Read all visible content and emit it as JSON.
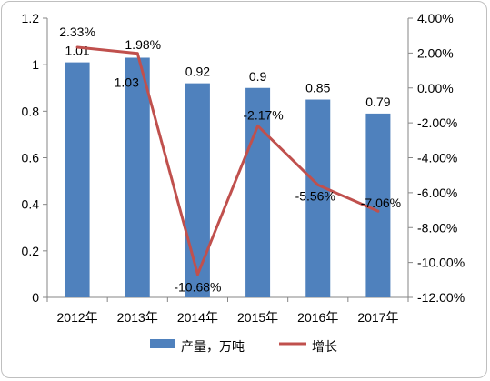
{
  "chart_data": {
    "type": "bar+line",
    "categories": [
      "2012年",
      "2013年",
      "2014年",
      "2015年",
      "2016年",
      "2017年"
    ],
    "series": [
      {
        "name": "产量，万吨",
        "type": "bar",
        "axis": "left",
        "color": "#4f81bd",
        "values": [
          1.01,
          1.03,
          0.92,
          0.9,
          0.85,
          0.79
        ],
        "labels": [
          "1.01",
          "1.03",
          "0.92",
          "0.9",
          "0.85",
          "0.79"
        ]
      },
      {
        "name": "增长",
        "type": "line",
        "axis": "right",
        "color": "#c0504d",
        "values": [
          2.33,
          1.98,
          -10.68,
          -2.17,
          -5.56,
          -7.06
        ],
        "labels": [
          "2.33%",
          "1.98%",
          "-10.68%",
          "-2.17%",
          "-5.56%",
          "-7.06%"
        ]
      }
    ],
    "y_left": {
      "ylim": [
        0,
        1.2
      ],
      "ticks": [
        "0",
        "0.2",
        "0.4",
        "0.6",
        "0.8",
        "1",
        "1.2"
      ]
    },
    "y_right": {
      "ylim": [
        -12,
        4
      ],
      "ticks": [
        "-12.00%",
        "-10.00%",
        "-8.00%",
        "-6.00%",
        "-4.00%",
        "-2.00%",
        "0.00%",
        "2.00%",
        "4.00%"
      ]
    },
    "legend_position": "bottom",
    "grid": false
  }
}
